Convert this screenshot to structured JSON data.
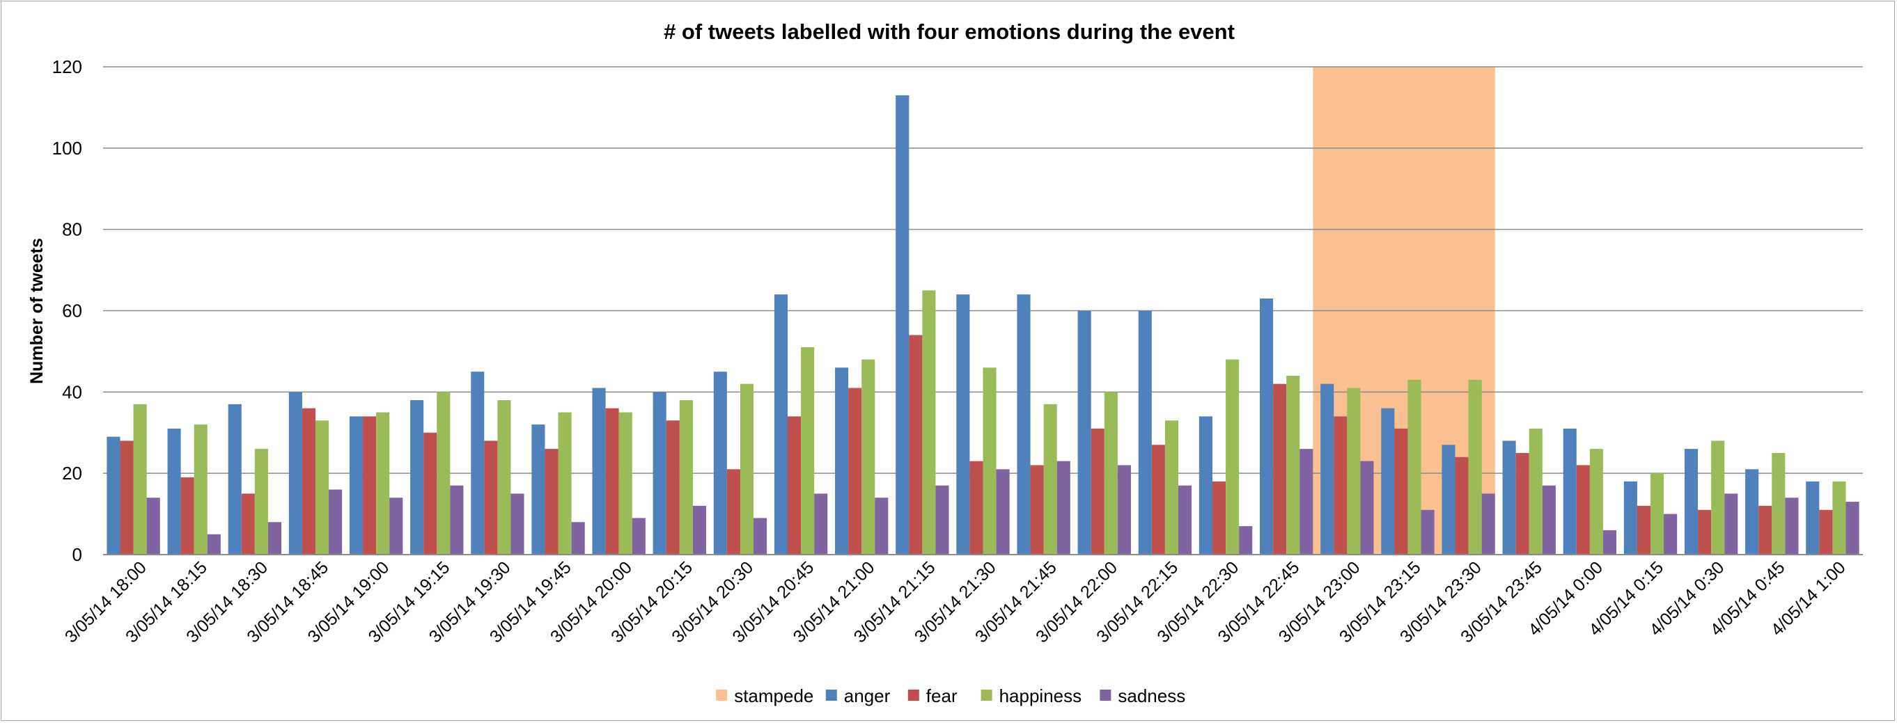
{
  "chart_data": {
    "type": "bar",
    "title": "# of tweets labelled with four emotions during the event",
    "xlabel": "",
    "ylabel": "Number of tweets",
    "ylim": [
      0,
      120
    ],
    "yticks": [
      0,
      20,
      40,
      60,
      80,
      100,
      120
    ],
    "grid": true,
    "legend_position": "bottom",
    "categories": [
      "3/05/14 18:00",
      "3/05/14 18:15",
      "3/05/14 18:30",
      "3/05/14 18:45",
      "3/05/14 19:00",
      "3/05/14 19:15",
      "3/05/14 19:30",
      "3/05/14 19:45",
      "3/05/14 20:00",
      "3/05/14 20:15",
      "3/05/14 20:30",
      "3/05/14 20:45",
      "3/05/14 21:00",
      "3/05/14 21:15",
      "3/05/14 21:30",
      "3/05/14 21:45",
      "3/05/14 22:00",
      "3/05/14 22:15",
      "3/05/14 22:30",
      "3/05/14 22:45",
      "3/05/14 23:00",
      "3/05/14 23:15",
      "3/05/14 23:30",
      "3/05/14 23:45",
      "4/05/14 0:00",
      "4/05/14 0:15",
      "4/05/14 0:30",
      "4/05/14 0:45",
      "4/05/14 1:00"
    ],
    "highlight": {
      "name": "stampede",
      "color": "#fac090",
      "from_category": "3/05/14 22:45",
      "to_category": "3/05/14 23:30",
      "value": 120
    },
    "series": [
      {
        "name": "anger",
        "color": "#4f81bd",
        "values": [
          29,
          31,
          37,
          40,
          34,
          38,
          45,
          32,
          41,
          40,
          45,
          64,
          46,
          113,
          64,
          64,
          60,
          60,
          34,
          63,
          42,
          36,
          27,
          28,
          31,
          18,
          26,
          21,
          18
        ]
      },
      {
        "name": "fear",
        "color": "#c0504d",
        "values": [
          28,
          19,
          15,
          36,
          34,
          30,
          28,
          26,
          36,
          33,
          21,
          34,
          41,
          54,
          23,
          22,
          31,
          27,
          18,
          42,
          34,
          31,
          24,
          25,
          22,
          12,
          11,
          12,
          11
        ]
      },
      {
        "name": "happiness",
        "color": "#9bbb59",
        "values": [
          37,
          32,
          26,
          33,
          35,
          40,
          38,
          35,
          35,
          38,
          42,
          51,
          48,
          65,
          46,
          37,
          40,
          33,
          48,
          44,
          41,
          43,
          43,
          31,
          26,
          20,
          28,
          25,
          18
        ]
      },
      {
        "name": "sadness",
        "color": "#8064a2",
        "values": [
          14,
          5,
          8,
          16,
          14,
          17,
          15,
          8,
          9,
          12,
          9,
          15,
          14,
          17,
          21,
          23,
          22,
          17,
          7,
          26,
          23,
          11,
          15,
          17,
          6,
          10,
          15,
          14,
          13
        ]
      }
    ]
  }
}
